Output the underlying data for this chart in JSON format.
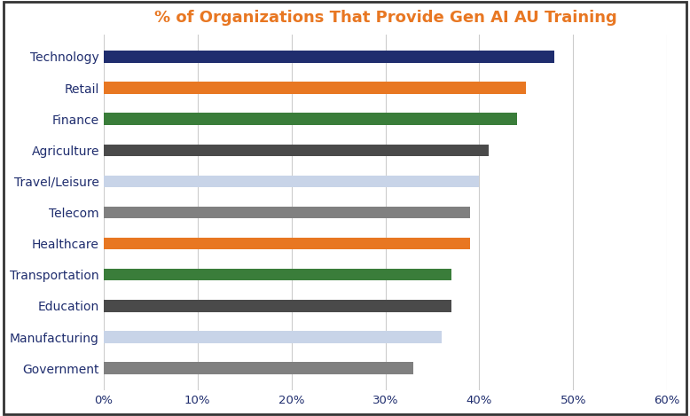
{
  "title": "% of Organizations That Provide Gen AI AU Training",
  "title_color": "#E87722",
  "title_fontsize": 13,
  "categories": [
    "Technology",
    "Retail",
    "Finance",
    "Agriculture",
    "Travel/Leisure",
    "Telecom",
    "Healthcare",
    "Transportation",
    "Education",
    "Manufacturing",
    "Government"
  ],
  "values": [
    0.48,
    0.45,
    0.44,
    0.41,
    0.4,
    0.39,
    0.39,
    0.37,
    0.37,
    0.36,
    0.33
  ],
  "bar_colors": [
    "#1F2D6E",
    "#E87722",
    "#3A7D3A",
    "#4A4A4A",
    "#C8D4E8",
    "#808080",
    "#E87722",
    "#3A7D3A",
    "#4A4A4A",
    "#C8D4E8",
    "#808080"
  ],
  "label_color": "#1F2D6E",
  "label_fontsize": 10,
  "tick_label_fontsize": 9.5,
  "xlim": [
    0,
    0.6
  ],
  "xtick_vals": [
    0,
    0.1,
    0.2,
    0.3,
    0.4,
    0.5,
    0.6
  ],
  "xtick_labels": [
    "0%",
    "10%",
    "20%",
    "30%",
    "40%",
    "50%",
    "60%"
  ],
  "background_color": "#FFFFFF",
  "grid_color": "#CCCCCC",
  "bar_height": 0.38,
  "figsize": [
    7.78,
    4.69
  ],
  "dpi": 100,
  "outer_border_color": "#333333",
  "outer_border_lw": 2.5
}
